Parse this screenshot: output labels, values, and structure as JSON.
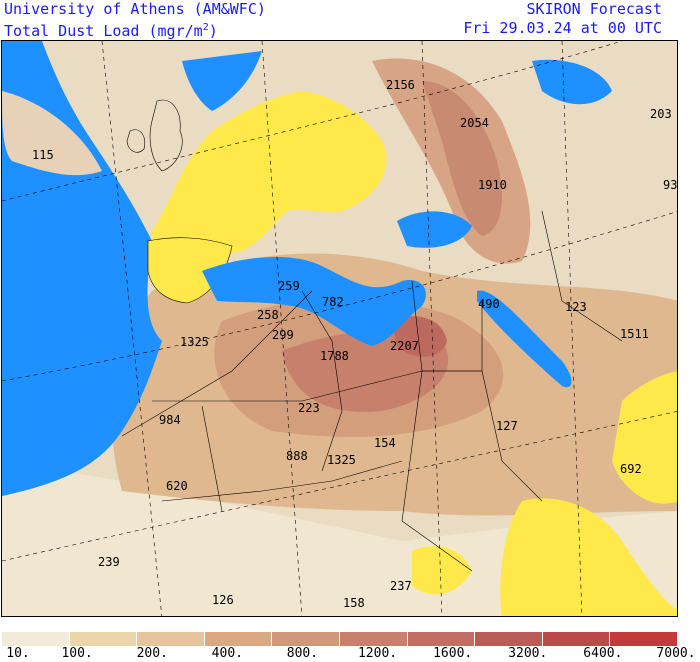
{
  "header": {
    "institution": "University of Athens (AM&WFC)",
    "product": "Total Dust Load (mgr/m",
    "product_sup": "2",
    "product_end": ")",
    "model": "SKIRON Forecast",
    "valid_time": "Fri 29.03.24 at 00 UTC"
  },
  "map": {
    "labels": [
      "115",
      "2156",
      "2054",
      "1910",
      "203",
      "93",
      "259",
      "782",
      "258",
      "299",
      "490",
      "123",
      "1325",
      "1788",
      "2207",
      "1511",
      "984",
      "223",
      "127",
      "888",
      "1325",
      "154",
      "692",
      "620",
      "239",
      "126",
      "158",
      "237"
    ]
  },
  "legend": {
    "colors": [
      "#f3ebda",
      "#ead6a8",
      "#e8c49c",
      "#dca882",
      "#cf9878",
      "#c7806c",
      "#c16e63",
      "#b95d59",
      "#ba4b48",
      "#c33a3a"
    ],
    "ticks": [
      "10.",
      "100.",
      "200.",
      "400.",
      "800.",
      "1200.",
      "1600.",
      "3200.",
      "6400.",
      "7000."
    ]
  }
}
